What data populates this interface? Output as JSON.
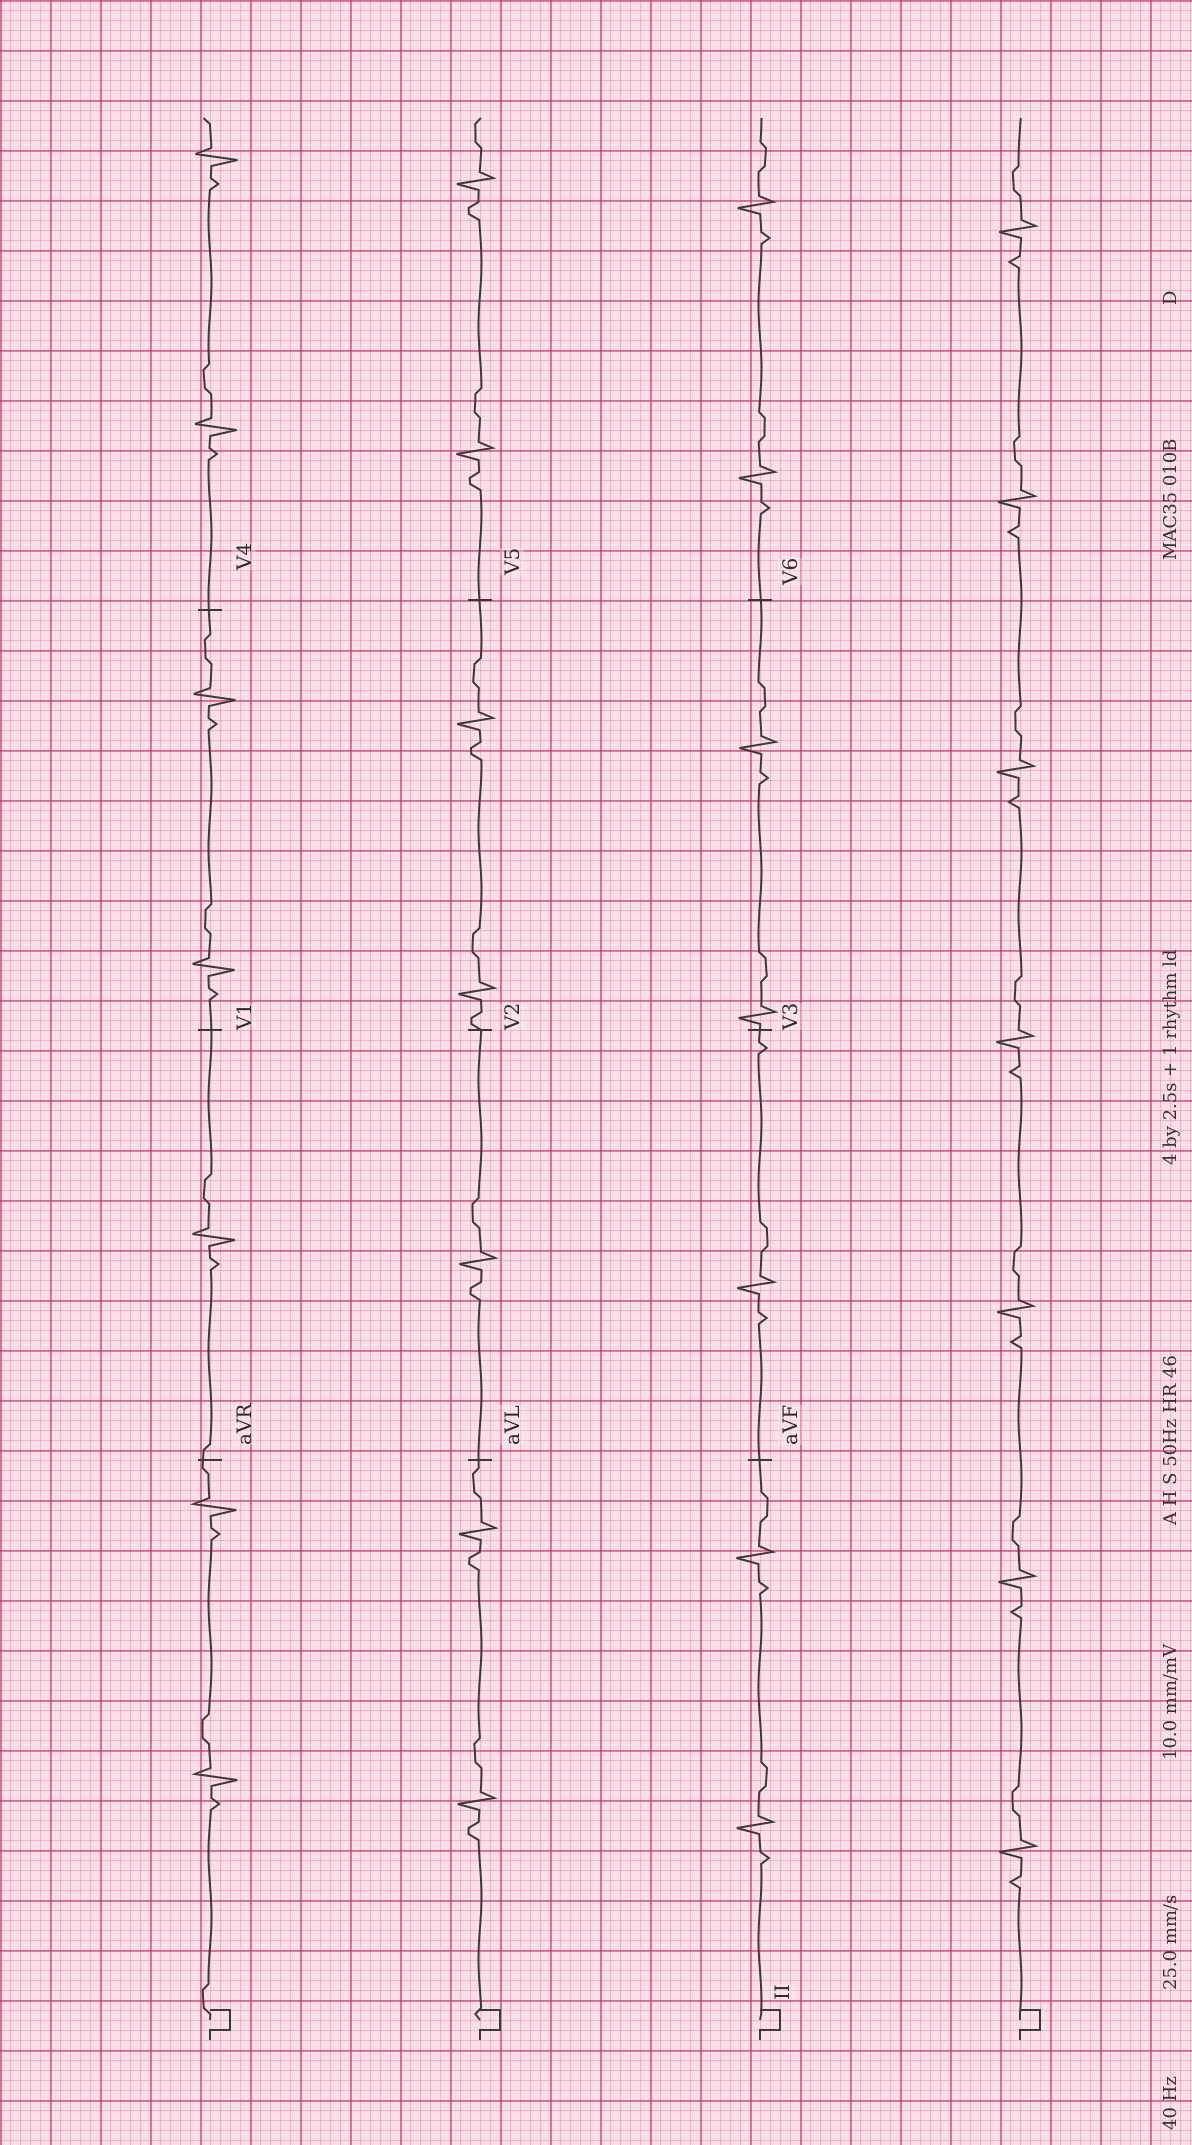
{
  "leads": {
    "row1": [
      "aVR",
      "V1",
      "V4"
    ],
    "row2": [
      "aVL",
      "V2",
      "V5"
    ],
    "row3": [
      "aVF",
      "V3",
      "V6"
    ],
    "rhythm_first_label": "II"
  },
  "footer": {
    "filter": "40 Hz",
    "speed": "25.0 mm/s",
    "gain": "10.0 mm/mV",
    "filter2": "A  H  S  50Hz  HR 46",
    "format": "4 by 2.5s + 1 rhythm ld",
    "device": "MAC35 010B",
    "suffix": "D"
  },
  "colors": {
    "grid_major": "#c8285a",
    "grid_minor": "#dc5078",
    "trace": "#3a3a3a",
    "paper": "#f9dfe7"
  }
}
